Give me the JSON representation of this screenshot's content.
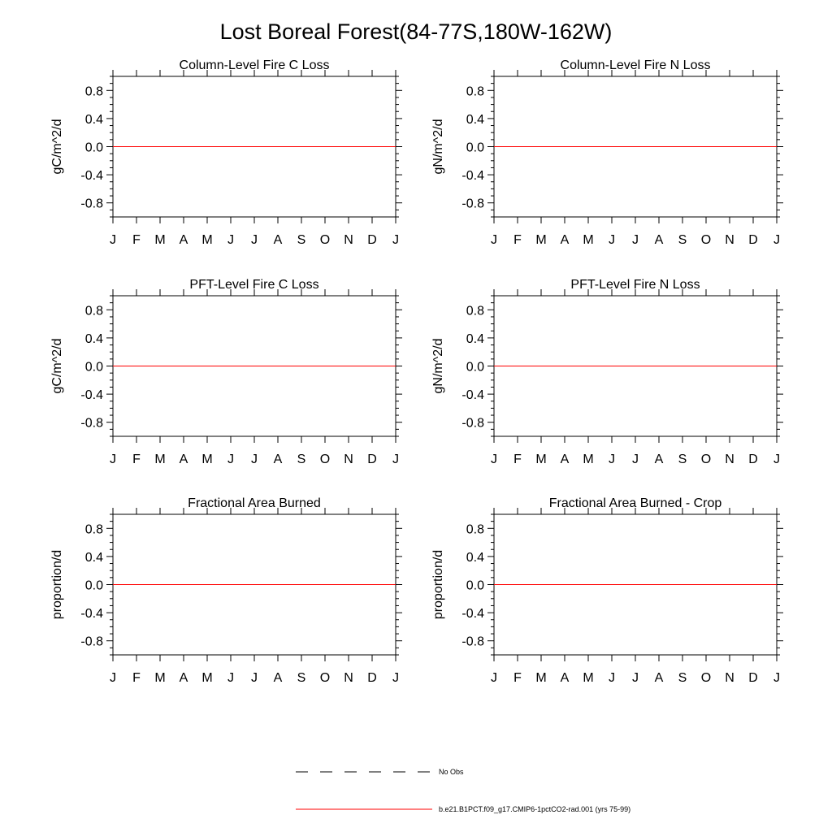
{
  "figure": {
    "title": "Lost Boreal Forest(84-77S,180W-162W)"
  },
  "legend": {
    "entries": [
      {
        "label": "No Obs",
        "style": "dashed",
        "color": "#000000"
      },
      {
        "label": "b.e21.B1PCT.f09_g17.CMIP6-1pctCO2-rad.001 (yrs 75-99)",
        "style": "solid",
        "color": "#ff0000"
      }
    ]
  },
  "colors": {
    "series_line": "#ff0000",
    "axes": "#000000",
    "background": "#ffffff"
  },
  "chart_data": [
    {
      "type": "line",
      "title": "Column-Level Fire C Loss",
      "xlabel": "",
      "ylabel": "gC/m^2/d",
      "categories": [
        "J",
        "F",
        "M",
        "A",
        "M",
        "J",
        "J",
        "A",
        "S",
        "O",
        "N",
        "D",
        "J"
      ],
      "yticks": [
        "0.8",
        "0.4",
        "0.0",
        "-0.4",
        "-0.8"
      ],
      "ylim": [
        -1,
        1
      ],
      "series": [
        {
          "name": "b.e21.B1PCT.f09_g17.CMIP6-1pctCO2-rad.001 (yrs 75-99)",
          "values": [
            0,
            0,
            0,
            0,
            0,
            0,
            0,
            0,
            0,
            0,
            0,
            0,
            0
          ]
        }
      ]
    },
    {
      "type": "line",
      "title": "Column-Level Fire N Loss",
      "xlabel": "",
      "ylabel": "gN/m^2/d",
      "categories": [
        "J",
        "F",
        "M",
        "A",
        "M",
        "J",
        "J",
        "A",
        "S",
        "O",
        "N",
        "D",
        "J"
      ],
      "yticks": [
        "0.8",
        "0.4",
        "0.0",
        "-0.4",
        "-0.8"
      ],
      "ylim": [
        -1,
        1
      ],
      "series": [
        {
          "name": "b.e21.B1PCT.f09_g17.CMIP6-1pctCO2-rad.001 (yrs 75-99)",
          "values": [
            0,
            0,
            0,
            0,
            0,
            0,
            0,
            0,
            0,
            0,
            0,
            0,
            0
          ]
        }
      ]
    },
    {
      "type": "line",
      "title": "PFT-Level Fire C Loss",
      "xlabel": "",
      "ylabel": "gC/m^2/d",
      "categories": [
        "J",
        "F",
        "M",
        "A",
        "M",
        "J",
        "J",
        "A",
        "S",
        "O",
        "N",
        "D",
        "J"
      ],
      "yticks": [
        "0.8",
        "0.4",
        "0.0",
        "-0.4",
        "-0.8"
      ],
      "ylim": [
        -1,
        1
      ],
      "series": [
        {
          "name": "b.e21.B1PCT.f09_g17.CMIP6-1pctCO2-rad.001 (yrs 75-99)",
          "values": [
            0,
            0,
            0,
            0,
            0,
            0,
            0,
            0,
            0,
            0,
            0,
            0,
            0
          ]
        }
      ]
    },
    {
      "type": "line",
      "title": "PFT-Level Fire N Loss",
      "xlabel": "",
      "ylabel": "gN/m^2/d",
      "categories": [
        "J",
        "F",
        "M",
        "A",
        "M",
        "J",
        "J",
        "A",
        "S",
        "O",
        "N",
        "D",
        "J"
      ],
      "yticks": [
        "0.8",
        "0.4",
        "0.0",
        "-0.4",
        "-0.8"
      ],
      "ylim": [
        -1,
        1
      ],
      "series": [
        {
          "name": "b.e21.B1PCT.f09_g17.CMIP6-1pctCO2-rad.001 (yrs 75-99)",
          "values": [
            0,
            0,
            0,
            0,
            0,
            0,
            0,
            0,
            0,
            0,
            0,
            0,
            0
          ]
        }
      ]
    },
    {
      "type": "line",
      "title": "Fractional Area Burned",
      "xlabel": "",
      "ylabel": "proportion/d",
      "categories": [
        "J",
        "F",
        "M",
        "A",
        "M",
        "J",
        "J",
        "A",
        "S",
        "O",
        "N",
        "D",
        "J"
      ],
      "yticks": [
        "0.8",
        "0.4",
        "0.0",
        "-0.4",
        "-0.8"
      ],
      "ylim": [
        -1,
        1
      ],
      "series": [
        {
          "name": "b.e21.B1PCT.f09_g17.CMIP6-1pctCO2-rad.001 (yrs 75-99)",
          "values": [
            0,
            0,
            0,
            0,
            0,
            0,
            0,
            0,
            0,
            0,
            0,
            0,
            0
          ]
        }
      ]
    },
    {
      "type": "line",
      "title": "Fractional Area Burned - Crop",
      "xlabel": "",
      "ylabel": "proportion/d",
      "categories": [
        "J",
        "F",
        "M",
        "A",
        "M",
        "J",
        "J",
        "A",
        "S",
        "O",
        "N",
        "D",
        "J"
      ],
      "yticks": [
        "0.8",
        "0.4",
        "0.0",
        "-0.4",
        "-0.8"
      ],
      "ylim": [
        -1,
        1
      ],
      "series": [
        {
          "name": "b.e21.B1PCT.f09_g17.CMIP6-1pctCO2-rad.001 (yrs 75-99)",
          "values": [
            0,
            0,
            0,
            0,
            0,
            0,
            0,
            0,
            0,
            0,
            0,
            0,
            0
          ]
        }
      ]
    }
  ]
}
